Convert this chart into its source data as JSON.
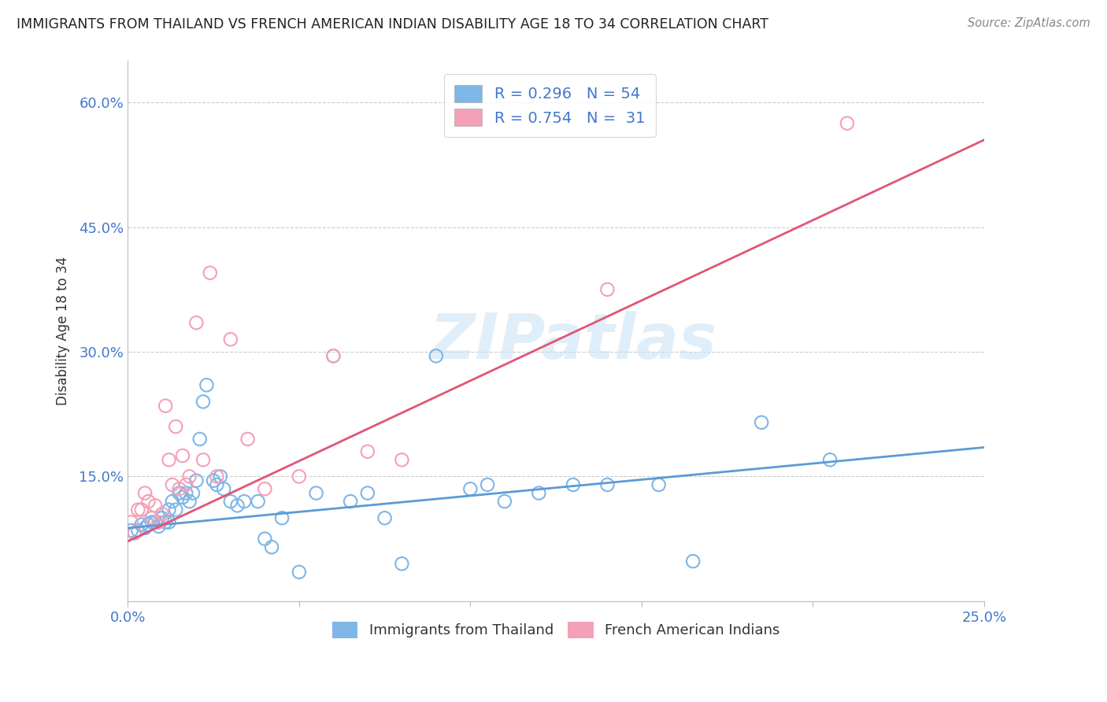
{
  "title": "IMMIGRANTS FROM THAILAND VS FRENCH AMERICAN INDIAN DISABILITY AGE 18 TO 34 CORRELATION CHART",
  "source": "Source: ZipAtlas.com",
  "ylabel": "Disability Age 18 to 34",
  "xlim": [
    0.0,
    0.25
  ],
  "ylim": [
    0.0,
    0.65
  ],
  "yticks": [
    0.15,
    0.3,
    0.45,
    0.6
  ],
  "ytick_labels": [
    "15.0%",
    "30.0%",
    "45.0%",
    "60.0%"
  ],
  "xticks": [
    0.0,
    0.05,
    0.1,
    0.15,
    0.2,
    0.25
  ],
  "xtick_labels": [
    "0.0%",
    "",
    "",
    "",
    "",
    "25.0%"
  ],
  "watermark": "ZIPatlas",
  "blue_scatter_x": [
    0.001,
    0.002,
    0.003,
    0.004,
    0.005,
    0.006,
    0.007,
    0.007,
    0.008,
    0.009,
    0.01,
    0.011,
    0.012,
    0.012,
    0.013,
    0.014,
    0.015,
    0.016,
    0.017,
    0.018,
    0.019,
    0.02,
    0.021,
    0.022,
    0.023,
    0.025,
    0.026,
    0.027,
    0.028,
    0.03,
    0.032,
    0.034,
    0.038,
    0.04,
    0.042,
    0.045,
    0.05,
    0.055,
    0.06,
    0.065,
    0.07,
    0.075,
    0.08,
    0.09,
    0.1,
    0.105,
    0.11,
    0.12,
    0.13,
    0.14,
    0.155,
    0.165,
    0.185,
    0.205
  ],
  "blue_scatter_y": [
    0.085,
    0.082,
    0.085,
    0.092,
    0.088,
    0.092,
    0.095,
    0.1,
    0.095,
    0.09,
    0.1,
    0.095,
    0.11,
    0.095,
    0.12,
    0.11,
    0.13,
    0.125,
    0.13,
    0.12,
    0.13,
    0.145,
    0.195,
    0.24,
    0.26,
    0.145,
    0.14,
    0.15,
    0.135,
    0.12,
    0.115,
    0.12,
    0.12,
    0.075,
    0.065,
    0.1,
    0.035,
    0.13,
    0.295,
    0.12,
    0.13,
    0.1,
    0.045,
    0.295,
    0.135,
    0.14,
    0.12,
    0.13,
    0.14,
    0.14,
    0.14,
    0.048,
    0.215,
    0.17
  ],
  "pink_scatter_x": [
    0.001,
    0.002,
    0.003,
    0.004,
    0.005,
    0.006,
    0.007,
    0.008,
    0.009,
    0.01,
    0.011,
    0.012,
    0.013,
    0.014,
    0.015,
    0.016,
    0.017,
    0.018,
    0.02,
    0.022,
    0.024,
    0.026,
    0.03,
    0.035,
    0.04,
    0.05,
    0.06,
    0.07,
    0.08,
    0.14,
    0.21
  ],
  "pink_scatter_y": [
    0.095,
    0.082,
    0.11,
    0.11,
    0.13,
    0.12,
    0.1,
    0.115,
    0.095,
    0.105,
    0.235,
    0.17,
    0.14,
    0.21,
    0.135,
    0.175,
    0.14,
    0.15,
    0.335,
    0.17,
    0.395,
    0.15,
    0.315,
    0.195,
    0.135,
    0.15,
    0.295,
    0.18,
    0.17,
    0.375,
    0.575
  ],
  "blue_line_x": [
    0.0,
    0.25
  ],
  "blue_line_y": [
    0.088,
    0.185
  ],
  "pink_line_x": [
    0.0,
    0.25
  ],
  "pink_line_y": [
    0.072,
    0.555
  ],
  "bg_color": "#ffffff",
  "grid_color": "#cccccc",
  "title_color": "#222222",
  "axis_color": "#4477cc",
  "text_dark": "#333333",
  "scatter_blue": "#7eb6e8",
  "scatter_pink": "#f4a0b8",
  "line_blue": "#5b9bd5",
  "line_pink": "#e05575",
  "legend_label_blue": "R = 0.296   N = 54",
  "legend_label_pink": "R = 0.754   N =  31",
  "bottom_label_blue": "Immigrants from Thailand",
  "bottom_label_pink": "French American Indians"
}
